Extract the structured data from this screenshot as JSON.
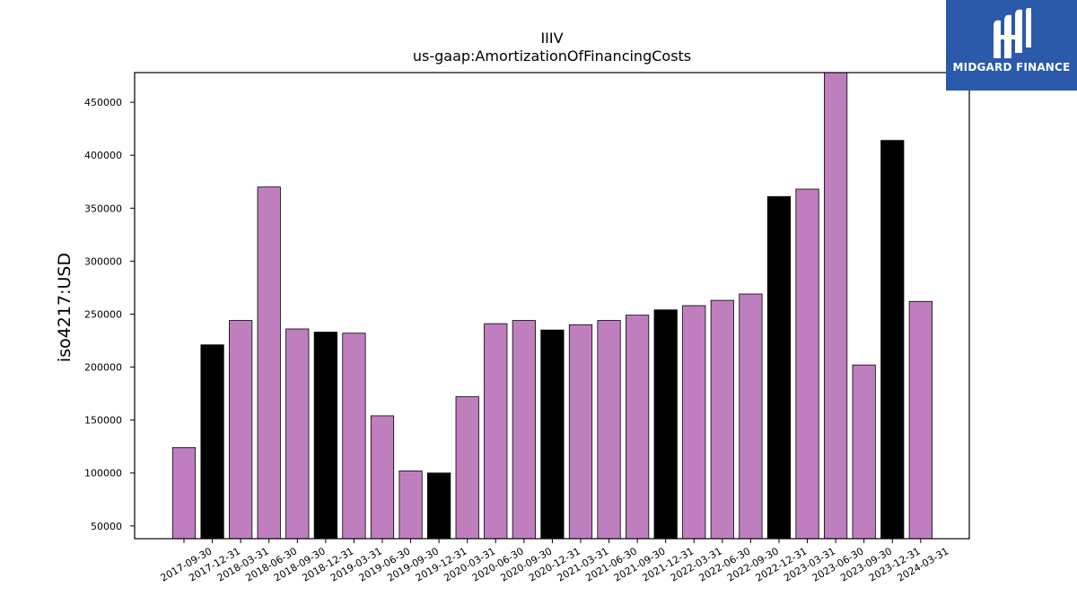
{
  "chart_data": {
    "type": "bar",
    "title": "IIIV",
    "subtitle": "us-gaap:AmortizationOfFinancingCosts",
    "xlabel": "",
    "ylabel": "iso4217:USD",
    "ylim": [
      38000,
      478000
    ],
    "yticks": [
      50000,
      100000,
      150000,
      200000,
      250000,
      300000,
      350000,
      400000,
      450000
    ],
    "categories": [
      "2017-09-30",
      "2017-12-31",
      "2018-03-31",
      "2018-06-30",
      "2018-09-30",
      "2018-12-31",
      "2019-03-31",
      "2019-06-30",
      "2019-09-30",
      "2019-12-31",
      "2020-03-31",
      "2020-06-30",
      "2020-09-30",
      "2020-12-31",
      "2021-03-31",
      "2021-06-30",
      "2021-09-30",
      "2021-12-31",
      "2022-03-31",
      "2022-06-30",
      "2022-09-30",
      "2022-12-31",
      "2023-03-31",
      "2023-06-30",
      "2023-09-30",
      "2023-12-31",
      "2024-03-31"
    ],
    "values": [
      124000,
      221000,
      244000,
      370000,
      236000,
      233000,
      232000,
      154000,
      102000,
      100000,
      172000,
      241000,
      244000,
      235000,
      240000,
      244000,
      249000,
      254000,
      258000,
      263000,
      269000,
      361000,
      368000,
      478000,
      202000,
      414000,
      262000
    ],
    "bar_colors": [
      "#bf7fbf",
      "#000000",
      "#bf7fbf",
      "#bf7fbf",
      "#bf7fbf",
      "#000000",
      "#bf7fbf",
      "#bf7fbf",
      "#bf7fbf",
      "#000000",
      "#bf7fbf",
      "#bf7fbf",
      "#bf7fbf",
      "#000000",
      "#bf7fbf",
      "#bf7fbf",
      "#bf7fbf",
      "#000000",
      "#bf7fbf",
      "#bf7fbf",
      "#bf7fbf",
      "#000000",
      "#bf7fbf",
      "#bf7fbf",
      "#bf7fbf",
      "#000000",
      "#bf7fbf"
    ],
    "grid": false,
    "legend": "none"
  },
  "logo": {
    "text": "MIDGARD FINANCE",
    "background": "#2a5aa9",
    "icon": "midgard-logo-icon"
  }
}
